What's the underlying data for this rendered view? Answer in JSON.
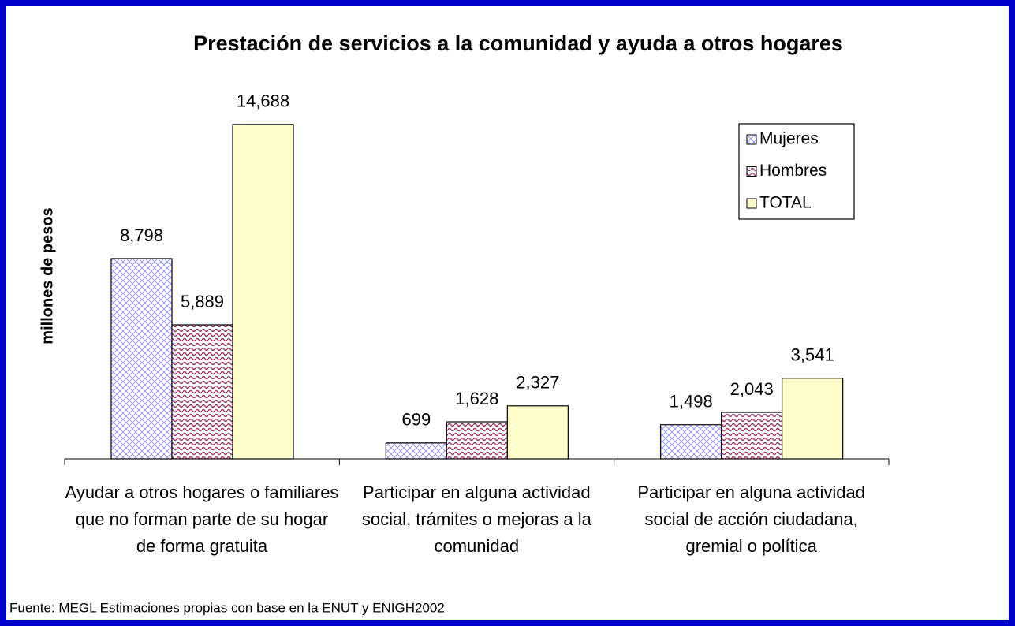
{
  "chart_data": {
    "type": "bar",
    "title": "Prestación de servicios a la comunidad y ayuda a otros hogares",
    "y_label": "millones de pesos",
    "source": "Fuente: MEGL Estimaciones propias con base en la ENUT y ENIGH2002",
    "categories": [
      "Ayudar a otros hogares o familiares que no forman parte de su hogar de forma gratuita",
      "Participar en alguna actividad social, trámites o mejoras a la comunidad",
      "Participar en alguna actividad social de acción ciudadana, gremial o política"
    ],
    "series": [
      {
        "name": "Mujeres",
        "color": "#9999ff",
        "pattern": "crosshatch",
        "values": [
          8798,
          699,
          1498
        ],
        "value_labels": [
          "8,798",
          "699",
          "1,498"
        ]
      },
      {
        "name": "Hombres",
        "color": "#993366",
        "pattern": "wave",
        "values": [
          5889,
          1628,
          2043
        ],
        "value_labels": [
          "5,889",
          "1,628",
          "2,043"
        ]
      },
      {
        "name": "TOTAL",
        "color": "#ffffcc",
        "pattern": "solid",
        "values": [
          14688,
          2327,
          3541
        ],
        "value_labels": [
          "14,688",
          "2,327",
          "3,541"
        ]
      }
    ],
    "ylim": [
      0,
      16000
    ],
    "legend": "top-right"
  }
}
